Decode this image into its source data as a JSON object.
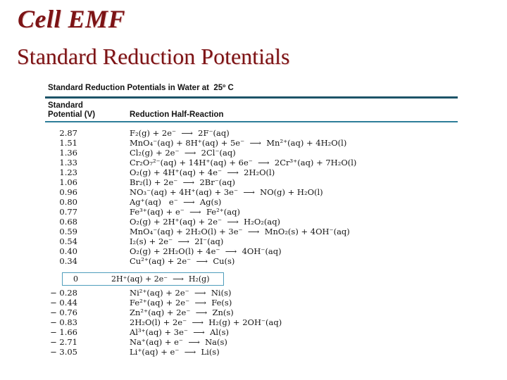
{
  "slide": {
    "title": "Cell EMF",
    "subtitle": "Standard Reduction Potentials"
  },
  "colors": {
    "title_red": "#7c1315",
    "rule_dark_teal": "#1d5468",
    "rule_teal": "#2d7d99",
    "box_border_teal": "#4f9dbb",
    "text": "#141414",
    "background": "#ffffff"
  },
  "table": {
    "title": "Standard Reduction Potentials in Water at  25º C",
    "col1_header_line1": "Standard",
    "col1_header_line2": "Potential (V)",
    "col2_header": "Reduction Half-Reaction",
    "rows_above": [
      {
        "potential": "2.87",
        "reaction": "F₂(g) + 2e⁻  ⟶  2F⁻(aq)"
      },
      {
        "potential": "1.51",
        "reaction": "MnO₄⁻(aq) + 8H⁺(aq) + 5e⁻  ⟶  Mn²⁺(aq) + 4H₂O(l)"
      },
      {
        "potential": "1.36",
        "reaction": "Cl₂(g) + 2e⁻  ⟶  2Cl⁻(aq)"
      },
      {
        "potential": "1.33",
        "reaction": "Cr₂O₇²⁻(aq) + 14H⁺(aq) + 6e⁻  ⟶  2Cr³⁺(aq) + 7H₂O(l)"
      },
      {
        "potential": "1.23",
        "reaction": "O₂(g) + 4H⁺(aq) + 4e⁻  ⟶  2H₂O(l)"
      },
      {
        "potential": "1.06",
        "reaction": "Br₂(l) + 2e⁻  ⟶  2Br⁻(aq)"
      },
      {
        "potential": "0.96",
        "reaction": "NO₃⁻(aq) + 4H⁺(aq) + 3e⁻  ⟶  NO(g) + H₂O(l)"
      },
      {
        "potential": "0.80",
        "reaction": "Ag⁺(aq)   e⁻  ⟶  Ag(s)"
      },
      {
        "potential": "0.77",
        "reaction": "Fe³⁺(aq) + e⁻  ⟶  Fe²⁺(aq)"
      },
      {
        "potential": "0.68",
        "reaction": "O₂(g) + 2H⁺(aq) + 2e⁻  ⟶  H₂O₂(aq)"
      },
      {
        "potential": "0.59",
        "reaction": "MnO₄⁻(aq) + 2H₂O(l) + 3e⁻  ⟶  MnO₂(s) + 4OH⁻(aq)"
      },
      {
        "potential": "0.54",
        "reaction": "I₂(s) + 2e⁻  ⟶  2I⁻(aq)"
      },
      {
        "potential": "0.40",
        "reaction": "O₂(g) + 2H₂O(l) + 4e⁻  ⟶  4OH⁻(aq)"
      },
      {
        "potential": "0.34",
        "reaction": "Cu²⁺(aq) + 2e⁻  ⟶  Cu(s)"
      }
    ],
    "boxed_row": {
      "potential": "0",
      "reaction": "2H⁺(aq) + 2e⁻  ⟶  H₂(g)"
    },
    "rows_below": [
      {
        "potential": "− 0.28",
        "reaction": "Ni²⁺(aq) + 2e⁻  ⟶  Ni(s)"
      },
      {
        "potential": "− 0.44",
        "reaction": "Fe²⁺(aq) + 2e⁻  ⟶  Fe(s)"
      },
      {
        "potential": "− 0.76",
        "reaction": "Zn²⁺(aq) + 2e⁻  ⟶  Zn(s)"
      },
      {
        "potential": "− 0.83",
        "reaction": "2H₂O(l) + 2e⁻  ⟶  H₂(g) + 2OH⁻(aq)"
      },
      {
        "potential": "− 1.66",
        "reaction": "Al³⁺(aq) + 3e⁻  ⟶  Al(s)"
      },
      {
        "potential": "− 2.71",
        "reaction": "Na⁺(aq) + e⁻  ⟶  Na(s)"
      },
      {
        "potential": "− 3.05",
        "reaction": "Li⁺(aq) + e⁻  ⟶  Li(s)"
      }
    ]
  }
}
